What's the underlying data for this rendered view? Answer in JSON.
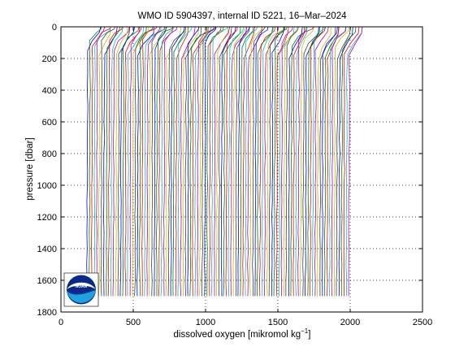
{
  "chart_data": {
    "type": "line",
    "title": "WMO ID 5904397, internal ID 5221, 16–Mar–2024",
    "xlabel": "dissolved oxygen [mikromol kg",
    "xlabel_sup": "−1",
    "xlabel_end": "]",
    "ylabel": "pressure [dbar]",
    "xlim": [
      0,
      2500
    ],
    "ylim": [
      0,
      1800
    ],
    "y_reversed": true,
    "grid": true,
    "x_ticks": [
      0,
      500,
      1000,
      1500,
      2000,
      2500
    ],
    "y_ticks": [
      0,
      200,
      400,
      600,
      800,
      1000,
      1200,
      1400,
      1600,
      1800
    ],
    "x_tick_labels": [
      "0",
      "500",
      "1000",
      "1500",
      "2000",
      "2500"
    ],
    "y_tick_labels": [
      "0",
      "200",
      "400",
      "600",
      "800",
      "1000",
      "1200",
      "1400",
      "1600",
      "1800"
    ],
    "waterfall": {
      "n_profiles": 110,
      "first_deep_value": 185,
      "last_deep_value": 1995,
      "surface_value_offset": 90,
      "mixed_layer_depth": 160,
      "max_pressure": 1700,
      "description_of_offset": "each profile shifted right by a constant increment"
    },
    "colors": [
      "#0000ff",
      "#008000",
      "#ff0000",
      "#00bfbf",
      "#bf00bf",
      "#bfbf00",
      "#404040"
    ]
  },
  "logo": {
    "name": "noaa-logo",
    "text": "NOAA"
  }
}
